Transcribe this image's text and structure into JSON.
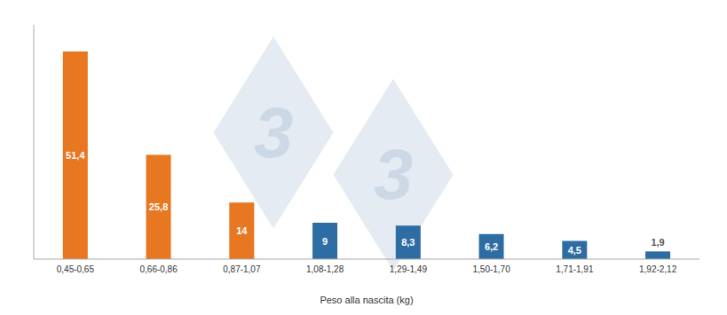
{
  "chart_data": {
    "type": "bar",
    "xlabel": "Peso alla nascita (kg)",
    "categories": [
      "0,45-0,65",
      "0,66-0,86",
      "0,87-1,07",
      "1,08-1,28",
      "1,29-1,49",
      "1,50-1,70",
      "1,71-1,91",
      "1,92-2,12"
    ],
    "values": [
      51.4,
      25.8,
      14,
      9,
      8.3,
      6.2,
      4.5,
      1.9
    ],
    "value_labels": [
      "51,4",
      "25,8",
      "14",
      "9",
      "8,3",
      "6,2",
      "4,5",
      "1,9"
    ],
    "colors": [
      "#E87722",
      "#E87722",
      "#E87722",
      "#2E6DA4",
      "#2E6DA4",
      "#2E6DA4",
      "#2E6DA4",
      "#2E6DA4"
    ],
    "ylim": [
      0,
      58
    ],
    "data_labels": true,
    "tick_labels": "x",
    "grid": false,
    "annotations": [
      {
        "text": "3",
        "color": "#ccd8e5"
      },
      {
        "text": "3",
        "color": "#ccd8e5"
      }
    ]
  }
}
